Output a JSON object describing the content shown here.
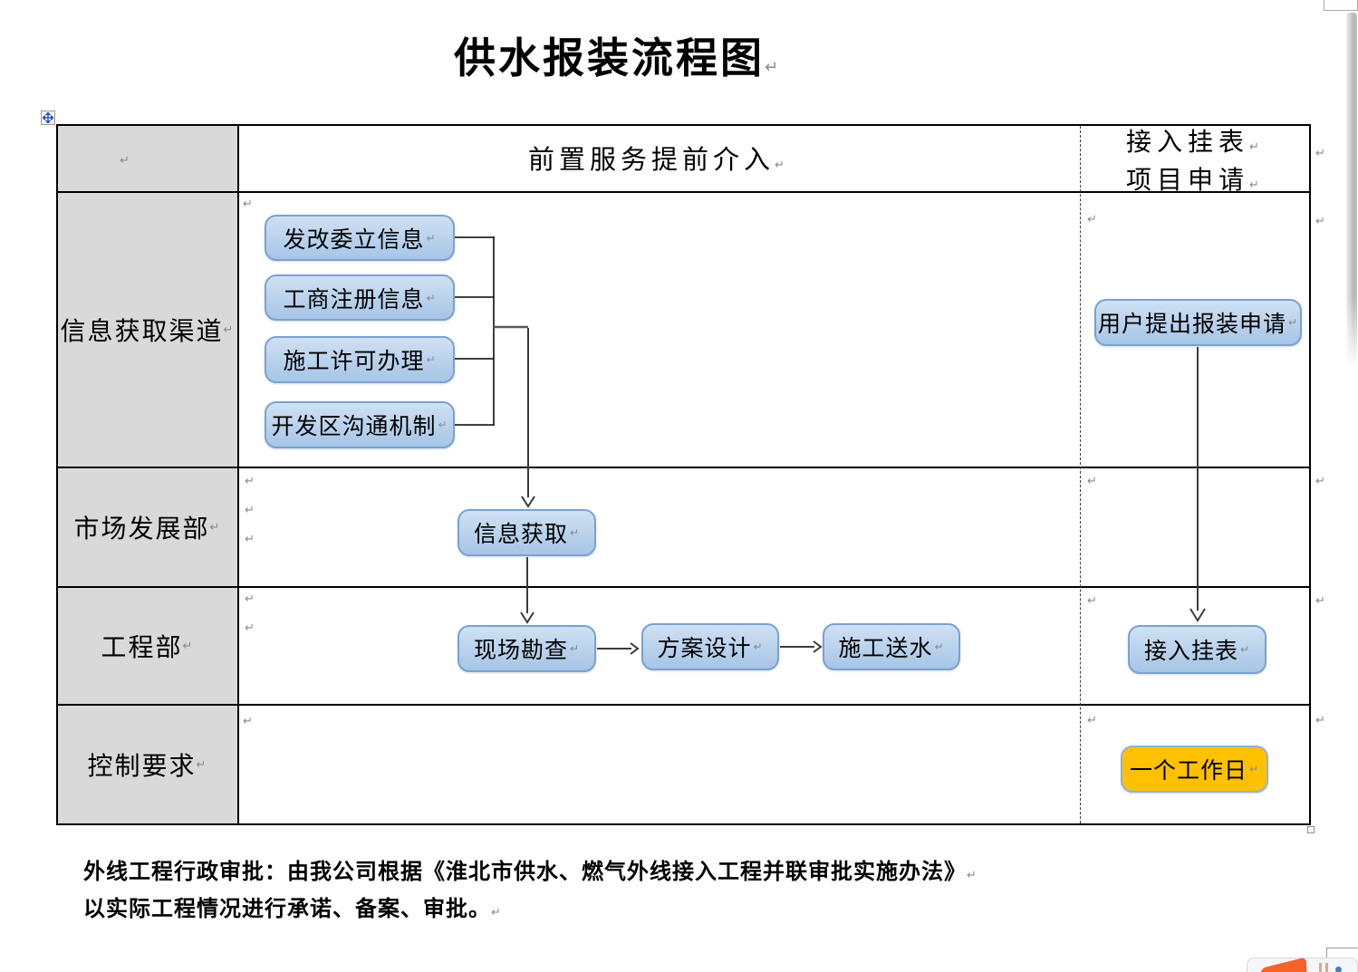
{
  "title": "供水报装流程图",
  "header": {
    "middle": "前置服务提前介入",
    "right_line1": "接入挂表",
    "right_line2": "项目申请"
  },
  "lanes": [
    "信息获取渠道",
    "市场发展部",
    "工程部",
    "控制要求"
  ],
  "flow": {
    "info_sources": [
      "发改委立信息",
      "工商注册信息",
      "施工许可办理",
      "开发区沟通机制"
    ],
    "market_step": "信息获取",
    "engineering_steps": [
      "现场勘查",
      "方案设计",
      "施工送水"
    ],
    "apply_box": "用户提出报装申请",
    "meter_box": "接入挂表",
    "control_box": "一个工作日"
  },
  "footer": {
    "line1": "外线工程行政审批：由我公司根据《淮北市供水、燃气外线接入工程并联审批实施办法》",
    "line2": "以实际工程情况进行承诺、备案、审批。"
  },
  "marks": {
    "pilcrow": "↵"
  },
  "colors": {
    "box_fill_top": "#cfe1f3",
    "box_fill_bottom": "#a6c5e6",
    "box_border": "#7ba1d0",
    "control_fill": "#ffc000",
    "lane_bg": "#d9d9d9"
  }
}
